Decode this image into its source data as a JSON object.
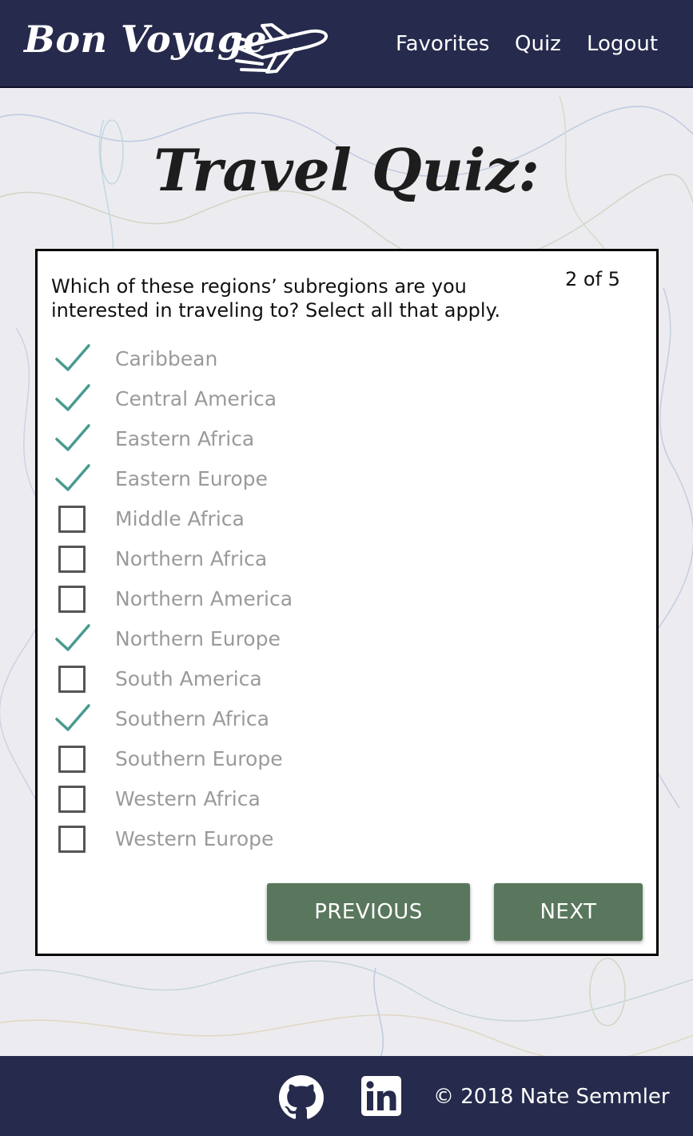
{
  "nav": {
    "brand": "Bon Voyage",
    "brand_icon": "airplane-icon",
    "links": [
      "Favorites",
      "Quiz",
      "Logout"
    ]
  },
  "page_title": "Travel Quiz:",
  "quiz": {
    "question": "Which of these regions’ subregions are you interested in traveling to? Select all that apply.",
    "progress": "2 of 5",
    "options": [
      {
        "label": "Caribbean",
        "checked": true
      },
      {
        "label": "Central America",
        "checked": true
      },
      {
        "label": "Eastern Africa",
        "checked": true
      },
      {
        "label": "Eastern Europe",
        "checked": true
      },
      {
        "label": "Middle Africa",
        "checked": false
      },
      {
        "label": "Northern Africa",
        "checked": false
      },
      {
        "label": "Northern America",
        "checked": false
      },
      {
        "label": "Northern Europe",
        "checked": true
      },
      {
        "label": "South America",
        "checked": false
      },
      {
        "label": "Southern Africa",
        "checked": true
      },
      {
        "label": "Southern Europe",
        "checked": false
      },
      {
        "label": "Western Africa",
        "checked": false
      },
      {
        "label": "Western Europe",
        "checked": false
      }
    ],
    "previous_label": "PREVIOUS",
    "next_label": "NEXT"
  },
  "footer": {
    "icons": [
      "github-icon",
      "linkedin-icon"
    ],
    "copyright": "© 2018 Nate Semmler"
  },
  "colors": {
    "navbar": "#262a4c",
    "button": "#59775d",
    "check": "#4a9a8f",
    "option_text": "#9a9a9a"
  }
}
